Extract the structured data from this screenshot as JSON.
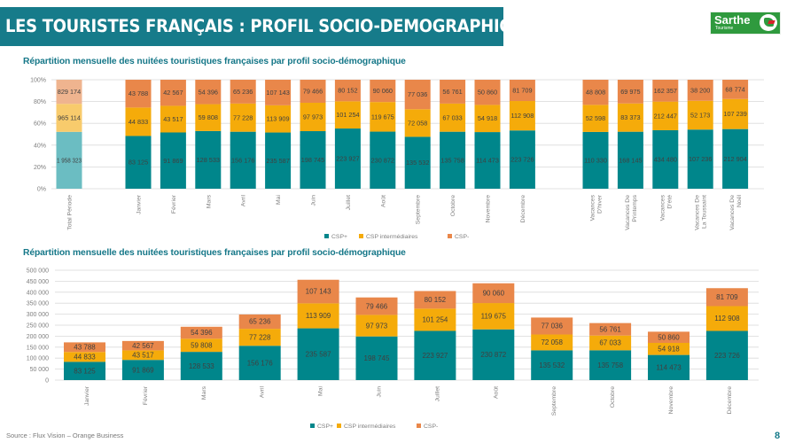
{
  "header": {
    "title": "LES TOURISTES FRANÇAIS : PROFIL SOCIO-DEMOGRAPHIQUE",
    "logo_text": "Sarthe",
    "logo_subtext": "Tourisme"
  },
  "colors": {
    "title_bg": "#167b8a",
    "csp_plus": "#00868b",
    "csp_inter": "#f5ab0a",
    "csp_minus": "#e9874a",
    "total_csp_plus": "#6bbdc2",
    "total_csp_inter": "#f8cb6c",
    "total_csp_minus": "#efb48f",
    "subtitle": "#157788"
  },
  "footer": {
    "source": "Source : Flux Vision – Orange Business",
    "page_number": "8"
  },
  "chart_data": [
    {
      "type": "bar",
      "stacked": "percent",
      "title": "Répartition mensuelle des nuitées touristiques françaises par profil socio-démographique",
      "xlabel": "",
      "ylabel": "",
      "ylim": [
        0,
        100
      ],
      "yticks": [
        "0%",
        "20%",
        "40%",
        "60%",
        "80%",
        "100%"
      ],
      "grid": true,
      "legend": "bottom",
      "groups": [
        [
          "Total Période"
        ],
        [
          "Janvier",
          "Février",
          "Mars",
          "Avril",
          "Mai",
          "Juin",
          "Juillet",
          "Août",
          "Septembre",
          "Octobre",
          "Novembre",
          "Décembre"
        ],
        [
          "Vacances D'hiver",
          "Vacances De Printemps",
          "Vacances D'été",
          "Vacances De La Toussaint",
          "Vacances De Noël"
        ]
      ],
      "categories": [
        "Total Période",
        "Janvier",
        "Février",
        "Mars",
        "Avril",
        "Mai",
        "Juin",
        "Juillet",
        "Août",
        "Septembre",
        "Octobre",
        "Novembre",
        "Décembre",
        "Vacances D'hiver",
        "Vacances De Printemps",
        "Vacances D'été",
        "Vacances De La Toussaint",
        "Vacances De Noël"
      ],
      "category_labels": [
        [
          "Total Période"
        ],
        [
          "Janvier"
        ],
        [
          "Février"
        ],
        [
          "Mars"
        ],
        [
          "Avril"
        ],
        [
          "Mai"
        ],
        [
          "Juin"
        ],
        [
          "Juillet"
        ],
        [
          "Août"
        ],
        [
          "Septembre"
        ],
        [
          "Octobre"
        ],
        [
          "Novembre"
        ],
        [
          "Décembre"
        ],
        [
          "Vacances",
          "D'hiver"
        ],
        [
          "Vacances De",
          "Printemps"
        ],
        [
          "Vacances",
          "D'été"
        ],
        [
          "Vacances De",
          "La Toussaint"
        ],
        [
          "Vacances De",
          "Noël"
        ]
      ],
      "series": [
        {
          "name": "CSP+",
          "values": [
            1958323,
            83125,
            91869,
            128533,
            156176,
            235587,
            198745,
            223927,
            230872,
            135532,
            135758,
            114473,
            223726,
            110330,
            168145,
            434480,
            107236,
            212904
          ],
          "labels": [
            "1 958 323",
            "83 125",
            "91 869",
            "128 533",
            "156 176",
            "235 587",
            "198 745",
            "223 927",
            "230 872",
            "135 532",
            "135 758",
            "114 473",
            "223 726",
            "110 330",
            "168 145",
            "434 480",
            "107 236",
            "212 904"
          ]
        },
        {
          "name": "CSP intermédiaires",
          "values": [
            965114,
            44833,
            43517,
            59808,
            77228,
            113909,
            97973,
            101254,
            119675,
            72058,
            67033,
            54918,
            112908,
            52598,
            83373,
            212447,
            52173,
            107239
          ],
          "labels": [
            "965 114",
            "44 833",
            "43 517",
            "59 808",
            "77 228",
            "113 909",
            "97 973",
            "101 254",
            "119 675",
            "72 058",
            "67 033",
            "54 918",
            "112 908",
            "52 598",
            "83 373",
            "212 447",
            "52 173",
            "107 239"
          ]
        },
        {
          "name": "CSP-",
          "values": [
            829174,
            43788,
            42567,
            54396,
            65236,
            107143,
            79466,
            80152,
            90060,
            77036,
            56761,
            50860,
            81709,
            48808,
            69975,
            162357,
            38200,
            68774
          ],
          "labels": [
            "829 174",
            "43 788",
            "42 567",
            "54 396",
            "65 236",
            "107 143",
            "79 466",
            "80 152",
            "90 060",
            "77 036",
            "56 761",
            "50 860",
            "81 709",
            "48 808",
            "69 975",
            "162 357",
            "38 200",
            "68 774"
          ]
        }
      ]
    },
    {
      "type": "bar",
      "stacked": "absolute",
      "title": "Répartition mensuelle des nuitées touristiques françaises par profil socio-démographique",
      "xlabel": "",
      "ylabel": "",
      "ylim": [
        0,
        500000
      ],
      "yticks": [
        "0",
        "50 000",
        "100 000",
        "150 000",
        "200 000",
        "250 000",
        "300 000",
        "350 000",
        "400 000",
        "450 000",
        "500 000"
      ],
      "grid": true,
      "legend": "bottom",
      "categories": [
        "Janvier",
        "Février",
        "Mars",
        "Avril",
        "Mai",
        "Juin",
        "Juillet",
        "Août",
        "Septembre",
        "Octobre",
        "Novembre",
        "Décembre"
      ],
      "series": [
        {
          "name": "CSP+",
          "values": [
            83125,
            91869,
            128533,
            156176,
            235587,
            198745,
            223927,
            230872,
            135532,
            135758,
            114473,
            223726
          ],
          "labels": [
            "83 125",
            "91 869",
            "128 533",
            "156 176",
            "235 587",
            "198 745",
            "223 927",
            "230 872",
            "135 532",
            "135 758",
            "114 473",
            "223 726"
          ]
        },
        {
          "name": "CSP intermédiaires",
          "values": [
            44833,
            43517,
            59808,
            77228,
            113909,
            97973,
            101254,
            119675,
            72058,
            67033,
            54918,
            112908
          ],
          "labels": [
            "44 833",
            "43 517",
            "59 808",
            "77 228",
            "113 909",
            "97 973",
            "101 254",
            "119 675",
            "72 058",
            "67 033",
            "54 918",
            "112 908"
          ]
        },
        {
          "name": "CSP-",
          "values": [
            43788,
            42567,
            54396,
            65236,
            107143,
            79466,
            80152,
            90060,
            77036,
            56761,
            50860,
            81709
          ],
          "labels": [
            "43 788",
            "42 567",
            "54 396",
            "65 236",
            "107 143",
            "79 466",
            "80 152",
            "90 060",
            "77 036",
            "56 761",
            "50 860",
            "81 709"
          ]
        }
      ]
    }
  ]
}
